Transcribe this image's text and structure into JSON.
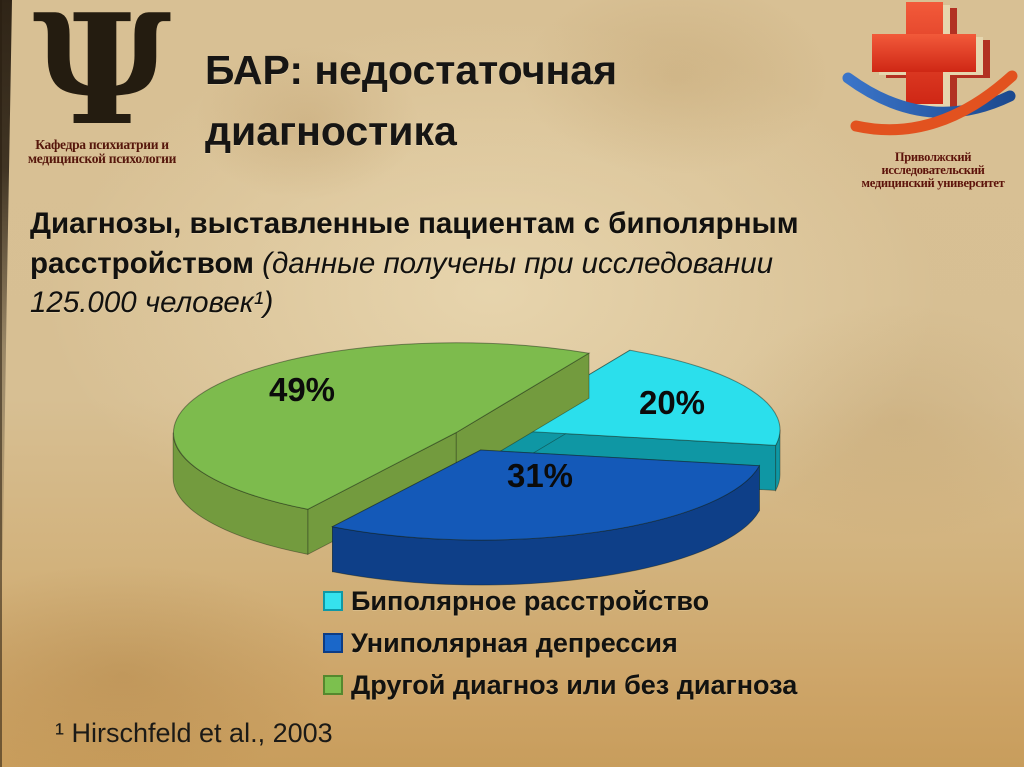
{
  "slide": {
    "title": "БАР: недостаточная диагностика",
    "subtitle": {
      "line1_bold": "Диагнозы, выставленные пациентам с биполярным",
      "line2_bold": "расстройством ",
      "line2_italic": "(данные получены при исследовании",
      "line3_italic": "125.000 человек¹)"
    },
    "footnote": "¹ Hirschfeld et al., 2003"
  },
  "logos": {
    "left": {
      "glyph": "Ψ",
      "caption_line1": "Кафедра психиатрии и",
      "caption_line2": "медицинской психологии"
    },
    "right": {
      "caption_line1": "Приволжский исследовательский",
      "caption_line2": "медицинский университет",
      "cross_color": "#e03a22",
      "cross_back_color": "#b23122",
      "swoosh_blue": "#2c5fb4",
      "swoosh_orange": "#e2521f"
    }
  },
  "chart_data": {
    "type": "pie",
    "title": "",
    "unit": "%",
    "effect": "3d-exploded",
    "legend_position": "bottom",
    "label_color": "#0b0b0b",
    "slices": [
      {
        "label": "Биполярное расстройство",
        "value": 20,
        "display": "20%",
        "color": "#2bdfec",
        "side_color": "#0f97a4"
      },
      {
        "label": "Другой диагноз или без диагноза",
        "value": 49,
        "display": "49%",
        "color": "#7dbb4d",
        "side_color": "#739b3e"
      },
      {
        "label": "Униполярная депрессия",
        "value": 31,
        "display": "31%",
        "color": "#1459b8",
        "side_color": "#0e3f88"
      }
    ],
    "legend": [
      {
        "label": "Биполярное расстройство",
        "color": "#35e2ee",
        "border": "#0f98a6"
      },
      {
        "label": "Униполярная депрессия",
        "color": "#1a67c9",
        "border": "#0c3c85"
      },
      {
        "label": "Другой диагноз или без диагноза",
        "color": "#7cc04e",
        "border": "#55882e"
      }
    ]
  }
}
